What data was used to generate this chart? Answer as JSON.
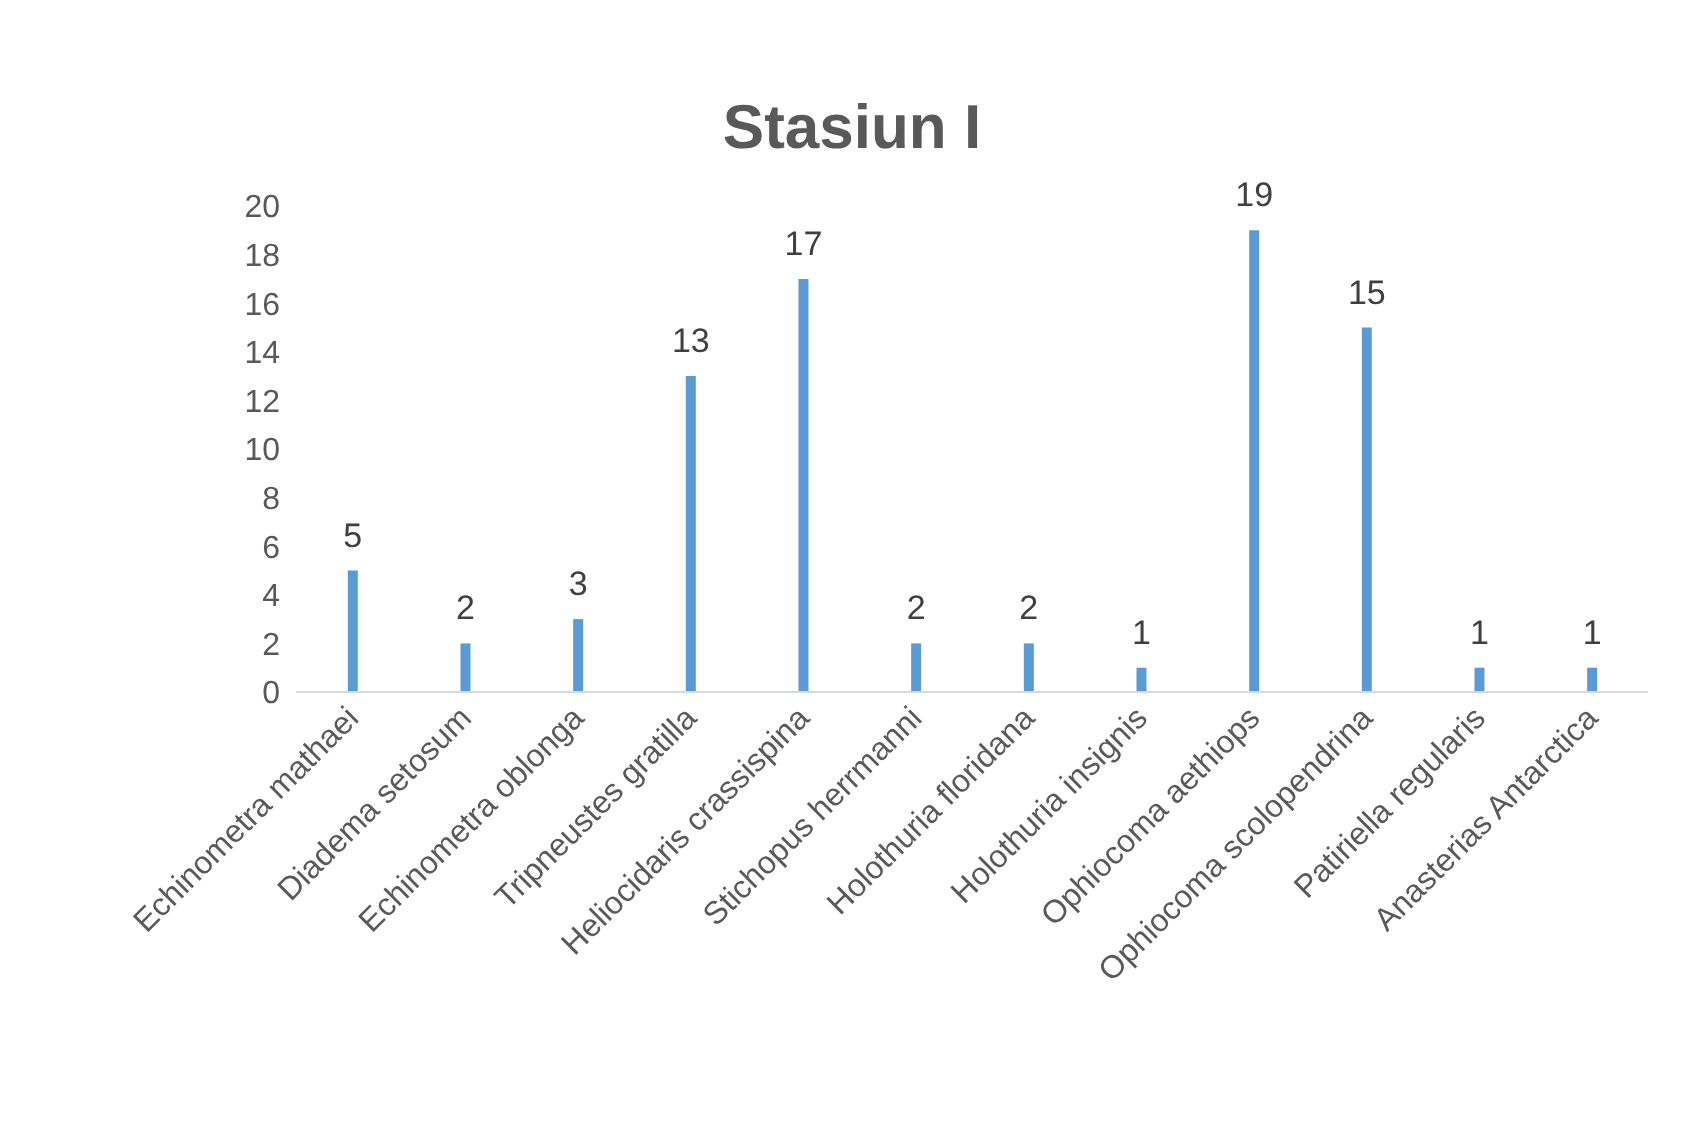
{
  "chart_data": {
    "type": "bar",
    "title": "Stasiun I",
    "categories": [
      "Echinometra mathaei",
      "Diadema setosum",
      "Echinometra oblonga",
      "Tripneustes gratilla",
      "Heliocidaris crassispina",
      "Stichopus herrmanni",
      "Holothuria floridana",
      "Holothuria insignis",
      "Ophiocoma aethiops",
      "Ophiocoma scolopendrina",
      "Patiriella regularis",
      "Anasterias Antarctica"
    ],
    "values": [
      5,
      2,
      3,
      13,
      17,
      2,
      2,
      1,
      19,
      15,
      1,
      1
    ],
    "color": "#5b9bd5",
    "ylim": [
      0,
      20
    ],
    "yticks": [
      0,
      2,
      4,
      6,
      8,
      10,
      12,
      14,
      16,
      18,
      20
    ],
    "data_labels": true
  }
}
